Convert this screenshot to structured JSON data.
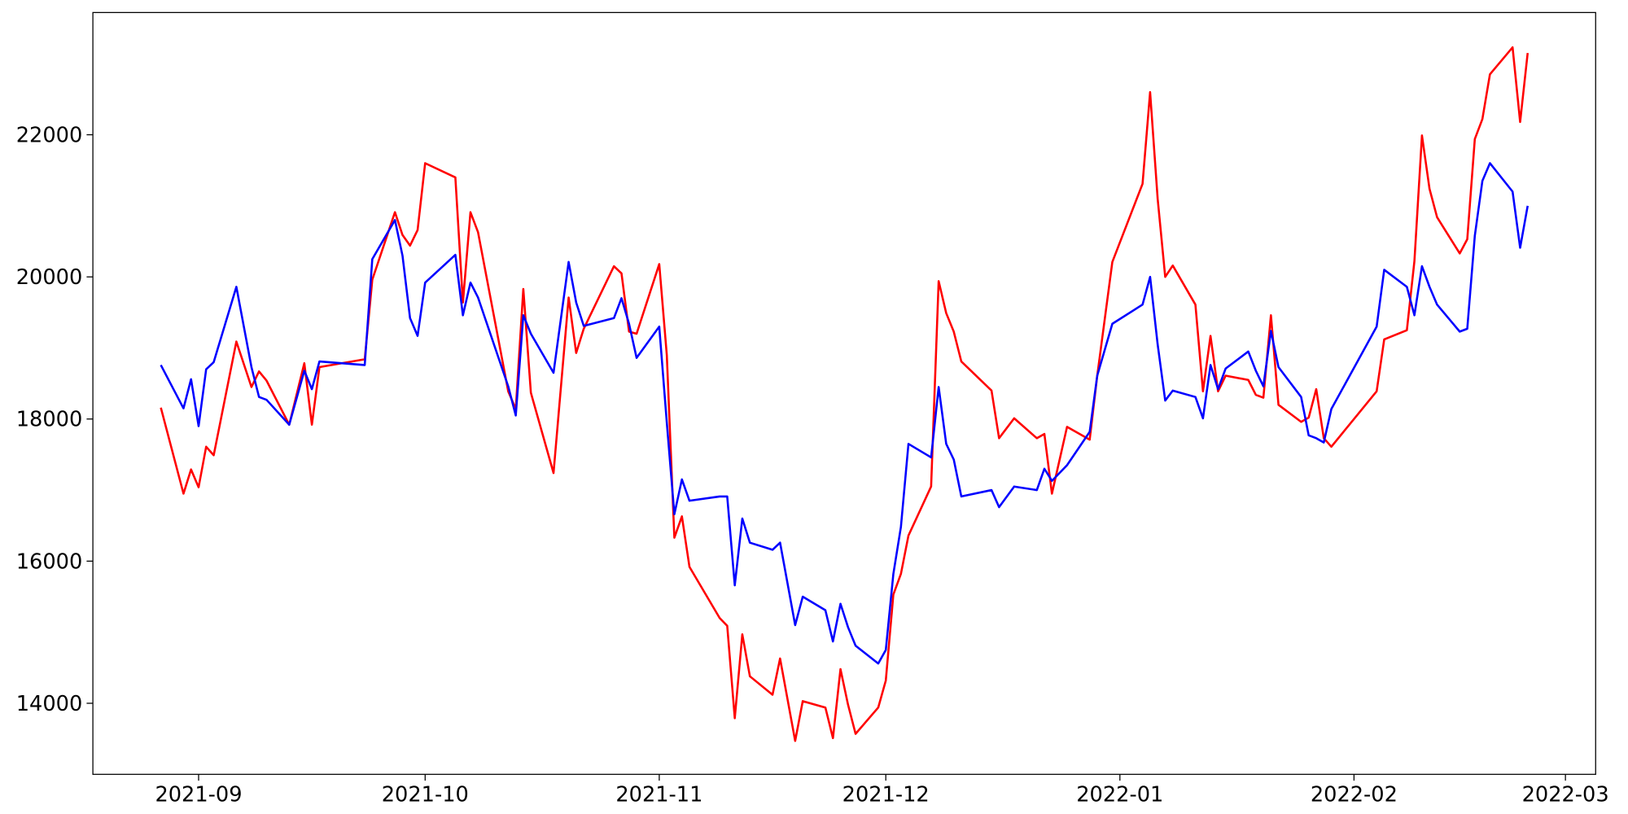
{
  "chart_data": {
    "type": "line",
    "x": [
      18866,
      18869,
      18870,
      18871,
      18872,
      18873,
      18876,
      18878,
      18879,
      18880,
      18883,
      18885,
      18886,
      18887,
      18893,
      18894,
      18897,
      18898,
      18899,
      18900,
      18901,
      18905,
      18906,
      18907,
      18908,
      18912,
      18913,
      18914,
      18915,
      18918,
      18920,
      18921,
      18922,
      18926,
      18927,
      18928,
      18929,
      18932,
      18933,
      18934,
      18935,
      18936,
      18940,
      18941,
      18942,
      18943,
      18944,
      18947,
      18948,
      18950,
      18951,
      18954,
      18955,
      18956,
      18957,
      18958,
      18961,
      18962,
      18963,
      18964,
      18965,
      18968,
      18969,
      18970,
      18971,
      18972,
      18976,
      18977,
      18979,
      18982,
      18983,
      18984,
      18986,
      18989,
      18990,
      18992,
      18996,
      18997,
      18998,
      18999,
      19000,
      19003,
      19004,
      19005,
      19006,
      19007,
      19010,
      19011,
      19012,
      19013,
      19014,
      19017,
      19018,
      19019,
      19020,
      19021,
      19027,
      19028,
      19031,
      19032,
      19033,
      19034,
      19035,
      19038,
      19039,
      19040,
      19041,
      19042,
      19045,
      19046,
      19047
    ],
    "series": [
      {
        "color": "#ff0000",
        "values": [
          18160,
          16950,
          17290,
          17040,
          17610,
          17490,
          19090,
          18450,
          18670,
          18540,
          17920,
          18785,
          17920,
          18730,
          18840,
          19960,
          20910,
          20590,
          20440,
          20660,
          21600,
          21400,
          19640,
          20910,
          20630,
          18390,
          18140,
          19830,
          18370,
          17240,
          19710,
          18930,
          19270,
          20150,
          20050,
          19230,
          19200,
          20180,
          18900,
          16330,
          16630,
          15920,
          15200,
          15090,
          13790,
          14970,
          14380,
          14120,
          14630,
          13470,
          14030,
          13940,
          13510,
          14480,
          13980,
          13570,
          13940,
          14320,
          15530,
          15820,
          16360,
          17050,
          19940,
          19490,
          19230,
          18810,
          18400,
          17730,
          18010,
          17730,
          17790,
          16950,
          17890,
          17710,
          18610,
          20210,
          21310,
          22600,
          21100,
          20000,
          20160,
          19610,
          18390,
          19170,
          18390,
          18610,
          18550,
          18340,
          18300,
          19460,
          18200,
          17960,
          18020,
          18420,
          17730,
          17610,
          18390,
          19120,
          19250,
          20220,
          21990,
          21240,
          20840,
          20330,
          20530,
          21940,
          22220,
          22850,
          23230,
          22180,
          23150
        ]
      },
      {
        "color": "#0000ff",
        "values": [
          18760,
          18150,
          18560,
          17900,
          18700,
          18800,
          19860,
          18730,
          18310,
          18270,
          17920,
          18680,
          18420,
          18810,
          18760,
          20250,
          20800,
          20300,
          19420,
          19170,
          19920,
          20310,
          19460,
          19920,
          19710,
          18460,
          18050,
          19460,
          19200,
          18650,
          20210,
          19640,
          19310,
          19420,
          19700,
          19340,
          18860,
          19300,
          17950,
          16660,
          17150,
          16850,
          16910,
          16910,
          15660,
          16600,
          16260,
          16160,
          16260,
          15100,
          15500,
          15310,
          14870,
          15400,
          15070,
          14810,
          14560,
          14750,
          15820,
          16480,
          17650,
          17460,
          18450,
          17650,
          17430,
          16910,
          17000,
          16760,
          17050,
          17000,
          17300,
          17130,
          17350,
          17820,
          18610,
          19340,
          19610,
          20000,
          19050,
          18260,
          18400,
          18310,
          18010,
          18760,
          18420,
          18710,
          18950,
          18680,
          18460,
          19240,
          18730,
          18310,
          17770,
          17730,
          17670,
          18140,
          19300,
          20100,
          19860,
          19460,
          20150,
          19860,
          19610,
          19230,
          19270,
          20580,
          21350,
          21600,
          21200,
          20410,
          21000
        ]
      }
    ],
    "xlim": [
      18857,
      19056
    ],
    "xticks": [
      {
        "value": 18871,
        "label": "2021-09"
      },
      {
        "value": 18901,
        "label": "2021-10"
      },
      {
        "value": 18932,
        "label": "2021-11"
      },
      {
        "value": 18962,
        "label": "2021-12"
      },
      {
        "value": 18993,
        "label": "2022-01"
      },
      {
        "value": 19024,
        "label": "2022-02"
      },
      {
        "value": 19052,
        "label": "2022-03"
      }
    ],
    "ylim": [
      13000,
      23720
    ],
    "yticks": [
      14000,
      16000,
      18000,
      20000,
      22000
    ],
    "grid": false
  }
}
